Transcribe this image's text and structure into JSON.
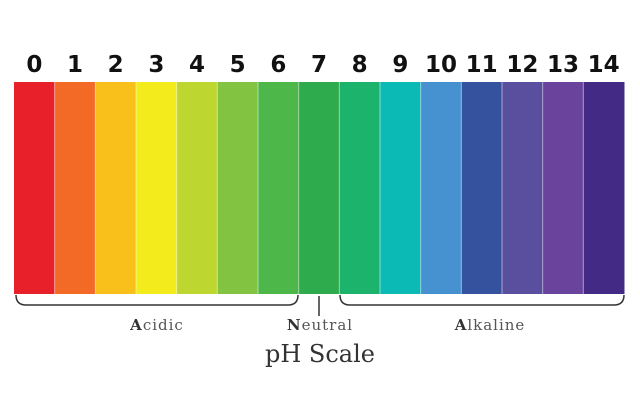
{
  "title": "pH Scale",
  "levels": [
    {
      "label": 0,
      "color": "#e8202a"
    },
    {
      "label": 1,
      "color": "#f26a25"
    },
    {
      "label": 2,
      "color": "#f9c01b"
    },
    {
      "label": 3,
      "color": "#f3eb1c"
    },
    {
      "label": 4,
      "color": "#bdd630"
    },
    {
      "label": 5,
      "color": "#82c341"
    },
    {
      "label": 6,
      "color": "#4db749"
    },
    {
      "label": 7,
      "color": "#2eab4c"
    },
    {
      "label": 8,
      "color": "#1cb46c"
    },
    {
      "label": 9,
      "color": "#0cbab5"
    },
    {
      "label": 10,
      "color": "#4691d0"
    },
    {
      "label": 11,
      "color": "#35529f"
    },
    {
      "label": 12,
      "color": "#5a4f9f"
    },
    {
      "label": 13,
      "color": "#6a449c"
    },
    {
      "label": 14,
      "color": "#432b85"
    }
  ],
  "groups": {
    "acidic": "Acidic",
    "neutral": "Neutral",
    "alkaline": "Alkaline"
  }
}
